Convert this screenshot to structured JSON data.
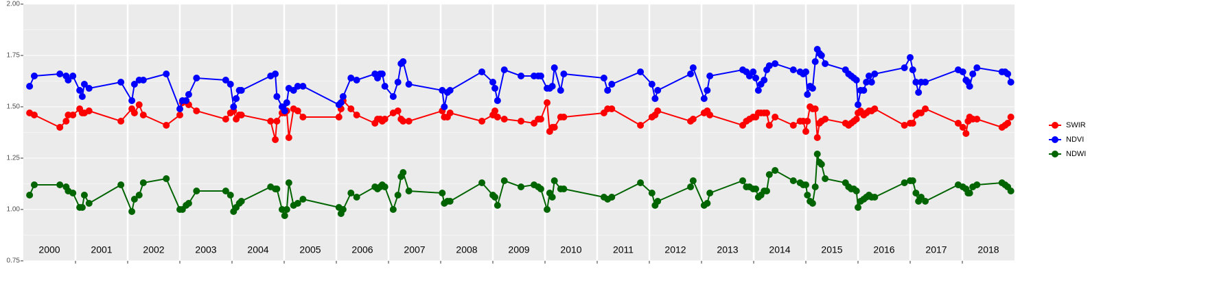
{
  "chart_data": {
    "type": "line",
    "ylim": [
      0.75,
      2.0
    ],
    "yticks": [
      0.75,
      {
        "value": 1.0,
        "label": "1.00"
      },
      1.25,
      {
        "value": 1.5,
        "label": "1.50"
      },
      1.75,
      {
        "value": 2.0,
        "label": "2.00"
      }
    ],
    "xlim": [
      2000,
      2019
    ],
    "xticks": [
      2001,
      2002,
      2003,
      2004,
      2005,
      2006,
      2007,
      2008,
      2009,
      2010,
      2011,
      2012,
      2013,
      2014,
      2015,
      2016,
      2017,
      2018
    ],
    "grid": true,
    "legend": "right",
    "year_labels": [
      "2000",
      "2001",
      "2002",
      "2003",
      "2004",
      "2005",
      "2006",
      "2007",
      "2008",
      "2009",
      "2010",
      "2011",
      "2012",
      "2013",
      "2014",
      "2015",
      "2016",
      "2017",
      "2018"
    ],
    "x": [
      2000.12,
      2000.21,
      2000.7,
      2000.82,
      2000.86,
      2000.95,
      2001.08,
      2001.13,
      2001.17,
      2001.26,
      2001.87,
      2002.08,
      2002.13,
      2002.22,
      2002.3,
      2002.74,
      2003.0,
      2003.05,
      2003.12,
      2003.17,
      2003.32,
      2003.88,
      2003.97,
      2004.03,
      2004.08,
      2004.14,
      2004.18,
      2004.74,
      2004.83,
      2004.86,
      2004.96,
      2005.01,
      2005.05,
      2005.09,
      2005.18,
      2005.26,
      2005.36,
      2006.05,
      2006.09,
      2006.13,
      2006.28,
      2006.39,
      2006.74,
      2006.79,
      2006.84,
      2006.88,
      2006.93,
      2007.09,
      2007.18,
      2007.24,
      2007.28,
      2007.39,
      2008.03,
      2008.07,
      2008.13,
      2008.18,
      2008.79,
      2009.0,
      2009.04,
      2009.09,
      2009.22,
      2009.54,
      2009.79,
      2009.87,
      2009.92,
      2010.04,
      2010.09,
      2010.14,
      2010.18,
      2010.3,
      2010.36,
      2011.13,
      2011.2,
      2011.28,
      2011.83,
      2012.05,
      2012.11,
      2012.16,
      2012.79,
      2012.84,
      2013.05,
      2013.11,
      2013.16,
      2013.79,
      2013.86,
      2013.92,
      2013.99,
      2014.04,
      2014.09,
      2014.14,
      2014.2,
      2014.25,
      2014.3,
      2014.41,
      2014.76,
      2014.89,
      2014.95,
      2015.0,
      2015.03,
      2015.08,
      2015.13,
      2015.18,
      2015.22,
      2015.26,
      2015.3,
      2015.37,
      2015.76,
      2015.82,
      2015.87,
      2015.92,
      2015.97,
      2016.0,
      2016.05,
      2016.11,
      2016.16,
      2016.21,
      2016.26,
      2016.32,
      2016.89,
      2017.0,
      2017.05,
      2017.11,
      2017.16,
      2017.21,
      2017.29,
      2017.92,
      2018.01,
      2018.07,
      2018.11,
      2018.14,
      2018.2,
      2018.28,
      2018.76,
      2018.82,
      2018.87,
      2018.93
    ],
    "series": [
      {
        "name": "SWIR",
        "color": "#ff0000",
        "values": [
          1.47,
          1.46,
          1.4,
          1.43,
          1.46,
          1.46,
          1.49,
          1.47,
          1.47,
          1.48,
          1.43,
          1.49,
          1.47,
          1.51,
          1.46,
          1.41,
          1.46,
          1.52,
          1.53,
          1.51,
          1.48,
          1.44,
          1.47,
          1.48,
          1.44,
          1.46,
          1.46,
          1.43,
          1.34,
          1.43,
          1.47,
          1.47,
          1.48,
          1.35,
          1.49,
          1.48,
          1.45,
          1.45,
          1.49,
          1.53,
          1.49,
          1.46,
          1.42,
          1.44,
          1.44,
          1.43,
          1.44,
          1.47,
          1.48,
          1.44,
          1.43,
          1.43,
          1.48,
          1.45,
          1.45,
          1.47,
          1.43,
          1.46,
          1.48,
          1.45,
          1.44,
          1.43,
          1.42,
          1.44,
          1.44,
          1.52,
          1.38,
          1.4,
          1.4,
          1.45,
          1.45,
          1.47,
          1.49,
          1.49,
          1.41,
          1.45,
          1.46,
          1.48,
          1.43,
          1.44,
          1.47,
          1.48,
          1.46,
          1.41,
          1.43,
          1.44,
          1.45,
          1.45,
          1.47,
          1.47,
          1.47,
          1.47,
          1.41,
          1.45,
          1.41,
          1.43,
          1.43,
          1.38,
          1.43,
          1.5,
          1.49,
          1.49,
          1.35,
          1.42,
          1.43,
          1.44,
          1.42,
          1.41,
          1.42,
          1.43,
          1.44,
          1.47,
          1.48,
          1.46,
          1.47,
          1.48,
          1.48,
          1.49,
          1.41,
          1.42,
          1.42,
          1.46,
          1.47,
          1.47,
          1.49,
          1.42,
          1.4,
          1.37,
          1.43,
          1.45,
          1.44,
          1.44,
          1.4,
          1.41,
          1.42,
          1.45
        ]
      },
      {
        "name": "NDVI",
        "color": "#0000ff",
        "values": [
          1.6,
          1.65,
          1.66,
          1.65,
          1.63,
          1.65,
          1.58,
          1.55,
          1.61,
          1.59,
          1.62,
          1.53,
          1.61,
          1.63,
          1.63,
          1.66,
          1.49,
          1.53,
          1.53,
          1.56,
          1.64,
          1.63,
          1.61,
          1.5,
          1.54,
          1.58,
          1.58,
          1.65,
          1.66,
          1.55,
          1.5,
          1.48,
          1.52,
          1.59,
          1.58,
          1.6,
          1.6,
          1.51,
          1.52,
          1.55,
          1.64,
          1.63,
          1.66,
          1.64,
          1.66,
          1.66,
          1.6,
          1.55,
          1.62,
          1.71,
          1.72,
          1.61,
          1.58,
          1.5,
          1.57,
          1.58,
          1.67,
          1.62,
          1.59,
          1.53,
          1.68,
          1.65,
          1.65,
          1.65,
          1.65,
          1.59,
          1.59,
          1.6,
          1.69,
          1.58,
          1.66,
          1.64,
          1.58,
          1.61,
          1.67,
          1.61,
          1.54,
          1.58,
          1.66,
          1.69,
          1.54,
          1.58,
          1.65,
          1.68,
          1.67,
          1.65,
          1.67,
          1.64,
          1.58,
          1.61,
          1.63,
          1.68,
          1.7,
          1.71,
          1.68,
          1.67,
          1.66,
          1.67,
          1.56,
          1.6,
          1.59,
          1.72,
          1.78,
          1.76,
          1.75,
          1.71,
          1.68,
          1.66,
          1.65,
          1.64,
          1.63,
          1.51,
          1.58,
          1.58,
          1.62,
          1.65,
          1.62,
          1.66,
          1.69,
          1.74,
          1.68,
          1.62,
          1.57,
          1.62,
          1.62,
          1.68,
          1.67,
          1.63,
          1.62,
          1.6,
          1.66,
          1.69,
          1.67,
          1.67,
          1.66,
          1.62
        ]
      },
      {
        "name": "NDWI",
        "color": "#006400",
        "values": [
          1.07,
          1.12,
          1.12,
          1.11,
          1.09,
          1.08,
          1.01,
          1.01,
          1.07,
          1.03,
          1.12,
          0.99,
          1.05,
          1.07,
          1.13,
          1.15,
          1.0,
          1.0,
          1.02,
          1.03,
          1.09,
          1.09,
          1.07,
          0.99,
          1.01,
          1.03,
          1.04,
          1.11,
          1.1,
          1.1,
          1.0,
          0.97,
          1.0,
          1.13,
          1.02,
          1.03,
          1.05,
          1.01,
          0.98,
          1.0,
          1.08,
          1.06,
          1.11,
          1.1,
          1.11,
          1.12,
          1.11,
          1.0,
          1.07,
          1.16,
          1.18,
          1.09,
          1.08,
          1.03,
          1.04,
          1.04,
          1.13,
          1.07,
          1.06,
          1.02,
          1.14,
          1.11,
          1.12,
          1.11,
          1.1,
          1.0,
          1.08,
          1.06,
          1.14,
          1.1,
          1.1,
          1.06,
          1.05,
          1.06,
          1.13,
          1.08,
          1.02,
          1.04,
          1.11,
          1.14,
          1.02,
          1.03,
          1.08,
          1.14,
          1.11,
          1.11,
          1.1,
          1.1,
          1.06,
          1.07,
          1.09,
          1.09,
          1.17,
          1.19,
          1.14,
          1.13,
          1.12,
          1.12,
          1.07,
          1.04,
          1.03,
          1.11,
          1.27,
          1.23,
          1.22,
          1.15,
          1.13,
          1.11,
          1.1,
          1.1,
          1.09,
          1.01,
          1.04,
          1.05,
          1.06,
          1.07,
          1.06,
          1.06,
          1.13,
          1.14,
          1.14,
          1.08,
          1.04,
          1.06,
          1.04,
          1.12,
          1.11,
          1.1,
          1.08,
          1.08,
          1.11,
          1.12,
          1.13,
          1.12,
          1.11,
          1.09
        ]
      }
    ]
  }
}
